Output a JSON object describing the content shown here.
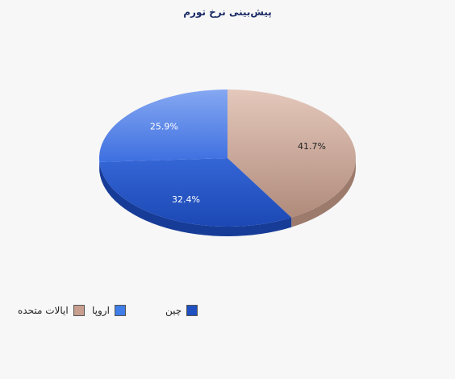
{
  "chart_data": {
    "type": "pie",
    "title": "پیش‌بینی نرخ تورم",
    "slices": [
      {
        "name": "ایالات متحده",
        "value": 41.7,
        "label": "41.7%",
        "color": "#c89e8e"
      },
      {
        "name": "چین",
        "value": 32.4,
        "label": "32.4%",
        "color": "#1f4fc0"
      },
      {
        "name": "اروپا",
        "value": 25.9,
        "label": "25.9%",
        "color": "#4e7fe6"
      }
    ],
    "legend": [
      {
        "name": "ایالات متحده",
        "color": "#c89e8e"
      },
      {
        "name": "اروپا",
        "color": "#3f7de8"
      },
      {
        "name": "چین",
        "color": "#1f4fc0"
      }
    ],
    "legend_position": "bottom-left"
  }
}
